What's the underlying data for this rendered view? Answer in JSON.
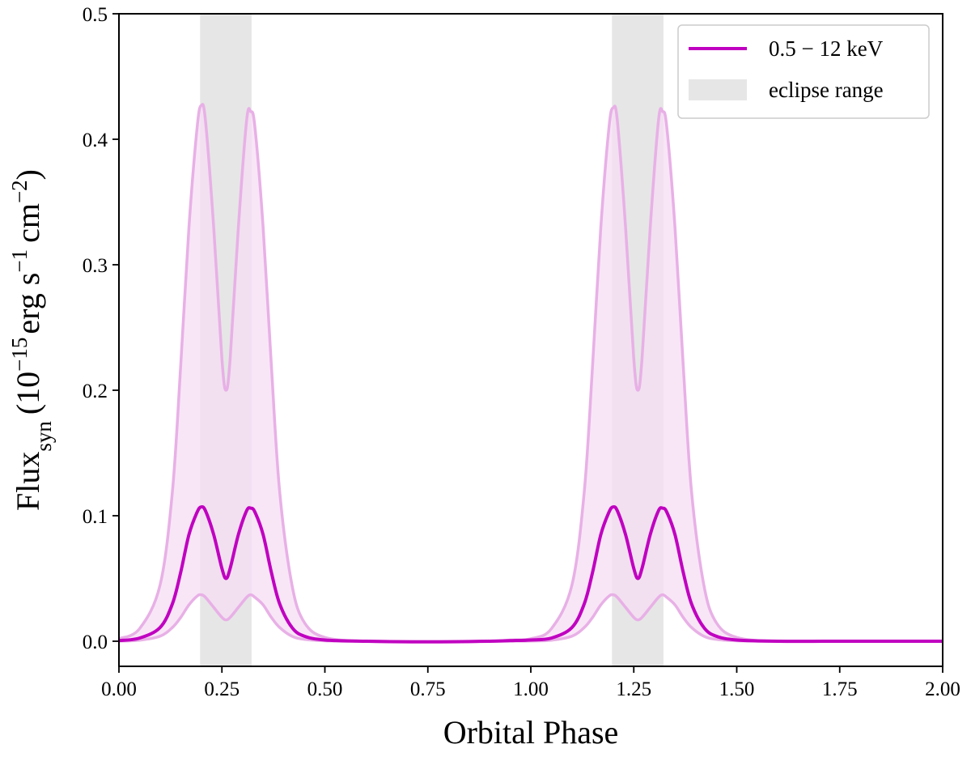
{
  "chart_data": {
    "type": "line",
    "xlabel": "Orbital Phase",
    "ylabel": {
      "prefix": "Flux",
      "prefix_sub": "syn",
      "open": "(10",
      "exp1": "−15",
      "unit1": "erg s",
      "exp2": "−1",
      "unit2": "cm",
      "exp3": "−2",
      "close": ")"
    },
    "xlim": [
      0.0,
      2.0
    ],
    "ylim": [
      -0.02,
      0.5
    ],
    "xticks": [
      0.0,
      0.25,
      0.5,
      0.75,
      1.0,
      1.25,
      1.5,
      1.75,
      2.0
    ],
    "xtick_labels": [
      "0.00",
      "0.25",
      "0.50",
      "0.75",
      "1.00",
      "1.25",
      "1.50",
      "1.75",
      "2.00"
    ],
    "yticks": [
      0.0,
      0.1,
      0.2,
      0.3,
      0.4,
      0.5
    ],
    "ytick_labels": [
      "0.0",
      "0.1",
      "0.2",
      "0.3",
      "0.4",
      "0.5"
    ],
    "grid": false,
    "legend_position": "top-right",
    "eclipse_ranges": [
      [
        0.197,
        0.322
      ],
      [
        1.197,
        1.322
      ]
    ],
    "series": [
      {
        "name": "0.5 − 12 keV",
        "role": "main",
        "color": "#c000c0",
        "x": [
          0.0,
          0.05,
          0.1,
          0.13,
          0.15,
          0.17,
          0.19,
          0.2,
          0.21,
          0.23,
          0.25,
          0.26,
          0.27,
          0.29,
          0.31,
          0.32,
          0.33,
          0.35,
          0.37,
          0.39,
          0.42,
          0.45,
          0.5,
          0.6,
          0.75,
          0.9,
          0.95,
          1.0,
          1.05,
          1.1,
          1.13,
          1.15,
          1.17,
          1.19,
          1.2,
          1.21,
          1.23,
          1.25,
          1.26,
          1.27,
          1.29,
          1.31,
          1.32,
          1.33,
          1.35,
          1.37,
          1.39,
          1.42,
          1.45,
          1.5,
          1.6,
          1.75,
          2.0
        ],
        "y": [
          0.0005,
          0.0025,
          0.011,
          0.03,
          0.055,
          0.085,
          0.103,
          0.107,
          0.104,
          0.085,
          0.058,
          0.05,
          0.058,
          0.085,
          0.104,
          0.106,
          0.103,
          0.085,
          0.055,
          0.03,
          0.011,
          0.004,
          0.001,
          0.0,
          -0.0005,
          0.0,
          0.0005,
          0.001,
          0.0025,
          0.011,
          0.03,
          0.055,
          0.085,
          0.103,
          0.107,
          0.104,
          0.085,
          0.058,
          0.05,
          0.058,
          0.085,
          0.104,
          0.106,
          0.103,
          0.085,
          0.055,
          0.03,
          0.011,
          0.004,
          0.001,
          0.0,
          0.0,
          0.0
        ]
      },
      {
        "name": "",
        "role": "upper",
        "color": "#e8b0e6",
        "x": [
          0.0,
          0.05,
          0.1,
          0.13,
          0.15,
          0.17,
          0.19,
          0.2,
          0.21,
          0.23,
          0.25,
          0.26,
          0.27,
          0.29,
          0.31,
          0.32,
          0.33,
          0.35,
          0.37,
          0.39,
          0.42,
          0.45,
          0.5,
          0.6,
          0.75,
          0.9,
          0.95,
          1.0,
          1.05,
          1.1,
          1.13,
          1.15,
          1.17,
          1.19,
          1.2,
          1.21,
          1.23,
          1.25,
          1.26,
          1.27,
          1.29,
          1.31,
          1.32,
          1.33,
          1.35,
          1.37,
          1.39,
          1.42,
          1.45,
          1.5,
          1.6,
          1.75,
          2.0
        ],
        "y": [
          0.002,
          0.01,
          0.045,
          0.12,
          0.22,
          0.33,
          0.41,
          0.427,
          0.415,
          0.33,
          0.225,
          0.2,
          0.225,
          0.33,
          0.415,
          0.422,
          0.41,
          0.33,
          0.22,
          0.12,
          0.045,
          0.015,
          0.003,
          0.0,
          -0.0005,
          0.0,
          0.001,
          0.002,
          0.01,
          0.045,
          0.12,
          0.22,
          0.33,
          0.41,
          0.425,
          0.415,
          0.33,
          0.225,
          0.2,
          0.225,
          0.33,
          0.415,
          0.422,
          0.41,
          0.33,
          0.22,
          0.12,
          0.045,
          0.015,
          0.003,
          0.0,
          0.0,
          0.0
        ]
      },
      {
        "name": "",
        "role": "lower",
        "color": "#e8b0e6",
        "x": [
          0.0,
          0.05,
          0.1,
          0.13,
          0.15,
          0.17,
          0.19,
          0.2,
          0.21,
          0.23,
          0.25,
          0.26,
          0.27,
          0.29,
          0.31,
          0.32,
          0.33,
          0.35,
          0.37,
          0.39,
          0.42,
          0.45,
          0.5,
          0.6,
          0.75,
          0.9,
          0.95,
          1.0,
          1.05,
          1.1,
          1.13,
          1.15,
          1.17,
          1.19,
          1.2,
          1.21,
          1.23,
          1.25,
          1.26,
          1.27,
          1.29,
          1.31,
          1.32,
          1.33,
          1.35,
          1.37,
          1.39,
          1.42,
          1.45,
          1.5,
          1.6,
          1.75,
          2.0
        ],
        "y": [
          0.0001,
          0.0008,
          0.004,
          0.011,
          0.019,
          0.029,
          0.036,
          0.037,
          0.035,
          0.027,
          0.019,
          0.017,
          0.019,
          0.027,
          0.035,
          0.037,
          0.035,
          0.029,
          0.019,
          0.011,
          0.004,
          0.0015,
          0.0003,
          0.0,
          -0.0003,
          0.0,
          0.0001,
          0.0002,
          0.0008,
          0.004,
          0.011,
          0.019,
          0.029,
          0.036,
          0.037,
          0.035,
          0.027,
          0.019,
          0.017,
          0.019,
          0.027,
          0.035,
          0.037,
          0.035,
          0.029,
          0.019,
          0.011,
          0.004,
          0.0015,
          0.0003,
          0.0,
          0.0,
          0.0
        ]
      }
    ],
    "band_fill_color": "#f5def4",
    "eclipse_color": "#e6e6e6",
    "legend": [
      {
        "label": "0.5 − 12 keV",
        "kind": "line",
        "color": "#c000c0"
      },
      {
        "label": "eclipse range",
        "kind": "patch",
        "color": "#e6e6e6"
      }
    ]
  }
}
